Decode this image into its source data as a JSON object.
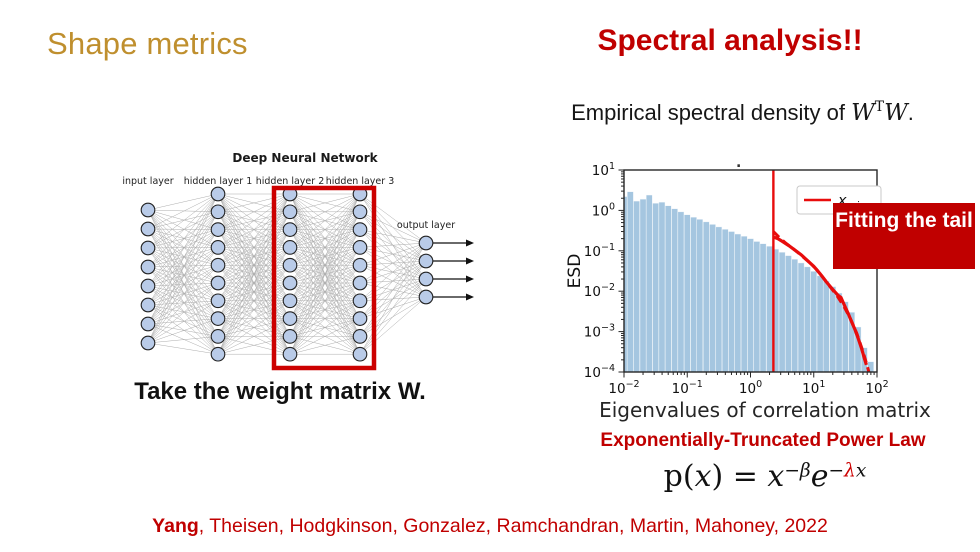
{
  "slide": {
    "title_left": "Shape metrics",
    "title_right": "Spectral analysis!!",
    "subtitle": {
      "prefix": "Empirical spectral density of ",
      "w1": "W",
      "transpose": "T",
      "w2": "W",
      "suffix": "."
    },
    "take_weight_text": "Take the weight matrix W.",
    "fitting_box_text": "Fitting the tail",
    "etpl_label": "Exponentially-Truncated Power Law",
    "formula": {
      "p": "p(",
      "x_arg": "x",
      "close_eq": ") = ",
      "base": "x",
      "sup_base": "−β",
      "e": "e",
      "sup_e_minus": "−",
      "sup_e_lambda": "λ",
      "sup_e_x": "x"
    },
    "citation": {
      "bold": "Yang",
      "rest": ", Theisen, Hodgkinson, Gonzalez, Ramchandran, Martin, Mahoney, 2022"
    }
  },
  "colors": {
    "gold_title": "#bf8f2e",
    "dark_red": "#c00000",
    "line_red": "#e80c0c",
    "bar_fill": "#a5c6e0",
    "highlight_box": "#cc0000"
  },
  "nn_diagram": {
    "title": "Deep Neural Network",
    "layers": [
      {
        "label": "input layer",
        "nodes": 8
      },
      {
        "label": "hidden layer 1",
        "nodes": 10
      },
      {
        "label": "hidden layer 2",
        "nodes": 10
      },
      {
        "label": "hidden layer 3",
        "nodes": 10
      },
      {
        "label": "output layer",
        "nodes": 4
      }
    ],
    "highlight": {
      "layers": [
        "hidden layer 2",
        "hidden layer 3"
      ],
      "color": "#cc0000"
    }
  },
  "chart_data": {
    "type": "bar",
    "title_dot": ".",
    "xlabel": "Eigenvalues of correlation matrix",
    "ylabel": "ESD",
    "xscale": "log",
    "yscale": "log",
    "xlim": [
      0.01,
      100
    ],
    "ylim": [
      0.0001,
      10
    ],
    "x_tick_exponents": [
      -2,
      -1,
      0,
      1,
      2
    ],
    "y_tick_exponents": [
      1,
      0,
      -1,
      -2,
      -3,
      -4
    ],
    "legend": {
      "label_main": "x",
      "label_sub": "min",
      "position": "upper right"
    },
    "xmin_line": 2.3,
    "bars": [
      [
        0.01,
        2.2
      ],
      [
        0.0126,
        2.9
      ],
      [
        0.0158,
        1.7
      ],
      [
        0.02,
        1.9
      ],
      [
        0.0251,
        2.4
      ],
      [
        0.0316,
        1.5
      ],
      [
        0.0398,
        1.6
      ],
      [
        0.0501,
        1.3
      ],
      [
        0.0631,
        1.1
      ],
      [
        0.0794,
        0.92
      ],
      [
        0.1,
        0.78
      ],
      [
        0.126,
        0.68
      ],
      [
        0.158,
        0.6
      ],
      [
        0.2,
        0.52
      ],
      [
        0.251,
        0.45
      ],
      [
        0.316,
        0.39
      ],
      [
        0.398,
        0.34
      ],
      [
        0.501,
        0.3
      ],
      [
        0.631,
        0.26
      ],
      [
        0.794,
        0.23
      ],
      [
        1.0,
        0.2
      ],
      [
        1.26,
        0.17
      ],
      [
        1.58,
        0.15
      ],
      [
        2.0,
        0.13
      ],
      [
        2.51,
        0.11
      ],
      [
        3.16,
        0.092
      ],
      [
        3.98,
        0.076
      ],
      [
        5.01,
        0.062
      ],
      [
        6.31,
        0.05
      ],
      [
        7.94,
        0.04
      ],
      [
        10.0,
        0.031
      ],
      [
        12.6,
        0.024
      ],
      [
        15.8,
        0.018
      ],
      [
        20.0,
        0.013
      ],
      [
        25.1,
        0.009
      ],
      [
        31.6,
        0.0055
      ],
      [
        39.8,
        0.003
      ],
      [
        50.1,
        0.0013
      ],
      [
        63.1,
        0.0004
      ],
      [
        79.4,
        0.00018
      ]
    ],
    "fit_lines": {
      "solid": [
        [
          2.3,
          0.22
        ],
        [
          2.7,
          0.2
        ],
        [
          3.2,
          0.17
        ],
        [
          4.0,
          0.135
        ],
        [
          5.0,
          0.105
        ],
        [
          6.3,
          0.08
        ],
        [
          7.9,
          0.058
        ],
        [
          10,
          0.041
        ],
        [
          12.6,
          0.027
        ],
        [
          15.8,
          0.017
        ],
        [
          20,
          0.011
        ],
        [
          24,
          0.008
        ],
        [
          27,
          0.007
        ],
        [
          30,
          0.0048
        ],
        [
          35,
          0.0028
        ],
        [
          40,
          0.0017
        ],
        [
          45,
          0.0011
        ],
        [
          50,
          0.0007
        ],
        [
          57,
          0.00038
        ],
        [
          63,
          0.00022
        ],
        [
          68,
          0.00015
        ]
      ],
      "dashed": [
        [
          2.3,
          0.3
        ],
        [
          2.9,
          0.21
        ],
        [
          3.6,
          0.155
        ],
        [
          4.8,
          0.11
        ],
        [
          6.3,
          0.078
        ],
        [
          8.5,
          0.052
        ],
        [
          11,
          0.035
        ],
        [
          14,
          0.022
        ],
        [
          18,
          0.013
        ],
        [
          23,
          0.008
        ],
        [
          30,
          0.0042
        ],
        [
          38,
          0.0021
        ],
        [
          48,
          0.0009
        ],
        [
          60,
          0.00032
        ],
        [
          72,
          0.00012
        ],
        [
          85,
          4.5e-05
        ],
        [
          97,
          1.8e-05
        ]
      ]
    }
  }
}
